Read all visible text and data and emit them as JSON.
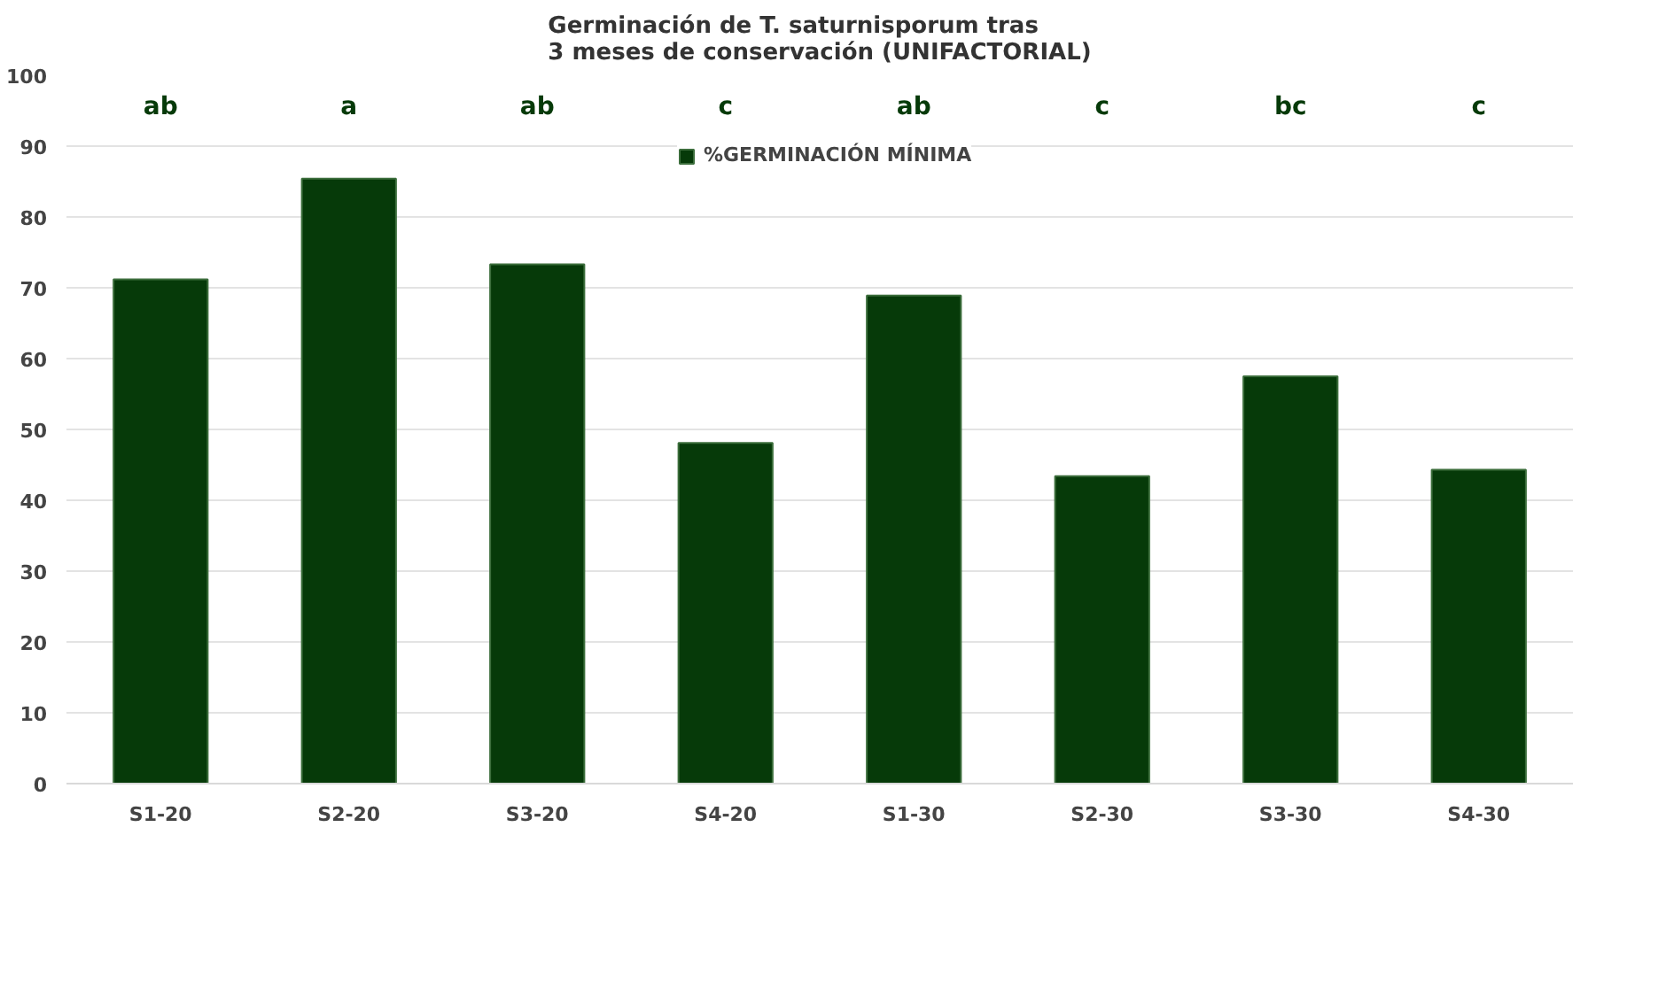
{
  "chart_data": {
    "type": "bar",
    "title": "Germinación de T. saturnisporum tras\n3 meses de conservación (UNIFACTORIAL)",
    "categories": [
      "S1-20",
      "S2-20",
      "S3-20",
      "S4-20",
      "S1-30",
      "S2-30",
      "S3-30",
      "S4-30"
    ],
    "series": [
      {
        "name": "%GERMINACIÓN MÍNIMA",
        "color": "#063a09",
        "values": [
          71.2,
          85.4,
          73.3,
          48.1,
          68.9,
          43.4,
          57.5,
          44.3
        ]
      }
    ],
    "ylim": [
      0,
      100
    ],
    "yticks": [
      0,
      10,
      20,
      30,
      40,
      50,
      60,
      70,
      80,
      90,
      100
    ],
    "grid": "y",
    "legend": "top",
    "annotations": [
      "ab",
      "a",
      "ab",
      "c",
      "ab",
      "c",
      "bc",
      "c"
    ]
  }
}
